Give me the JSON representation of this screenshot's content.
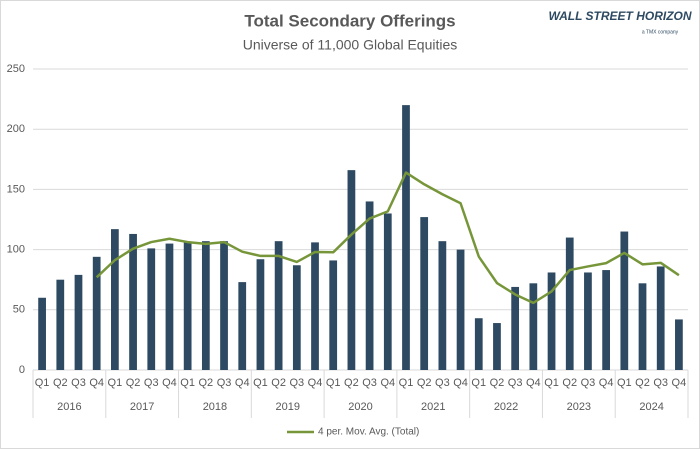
{
  "logo": {
    "name": "WALL STREET HORIZON",
    "tagline": "a TMX company"
  },
  "chart_data": {
    "type": "combo",
    "title": "Total Secondary Offerings",
    "subtitle": "Universe of 11,000 Global Equities",
    "categories": [
      "Q1",
      "Q2",
      "Q3",
      "Q4",
      "Q1",
      "Q2",
      "Q3",
      "Q4",
      "Q1",
      "Q2",
      "Q3",
      "Q4",
      "Q1",
      "Q2",
      "Q3",
      "Q4",
      "Q1",
      "Q2",
      "Q3",
      "Q4",
      "Q1",
      "Q2",
      "Q3",
      "Q4",
      "Q1",
      "Q2",
      "Q3",
      "Q4",
      "Q1",
      "Q2",
      "Q3",
      "Q4",
      "Q1",
      "Q2",
      "Q3",
      "Q4"
    ],
    "groups": [
      "2016",
      "2017",
      "2018",
      "2019",
      "2020",
      "2021",
      "2022",
      "2023",
      "2024"
    ],
    "series": [
      {
        "type": "bar",
        "color": "#2e4a62",
        "values": [
          60,
          75,
          79,
          94,
          117,
          113,
          101,
          105,
          106,
          107,
          107,
          73,
          92,
          107,
          87,
          106,
          91,
          166,
          140,
          130,
          220,
          127,
          107,
          100,
          43,
          39,
          69,
          72,
          81,
          110,
          81,
          83,
          115,
          72,
          86,
          42
        ]
      },
      {
        "type": "line",
        "name": "4 per. Mov. Avg. (Total)",
        "color": "#77963a",
        "values": [
          null,
          null,
          null,
          77,
          91.25,
          100.75,
          106.25,
          109,
          106.25,
          104.75,
          106.25,
          98.25,
          94.75,
          94.75,
          89.75,
          98,
          97.75,
          112.5,
          125.75,
          131.75,
          164,
          154.25,
          146,
          138.5,
          94.25,
          72.25,
          62.75,
          55.75,
          65.25,
          83,
          86,
          88.75,
          97.25,
          87.75,
          89,
          78.75
        ]
      }
    ],
    "ylim": [
      0,
      250
    ],
    "yticks": [
      0,
      50,
      100,
      150,
      200,
      250
    ],
    "grid": true,
    "legend": "bottom"
  }
}
